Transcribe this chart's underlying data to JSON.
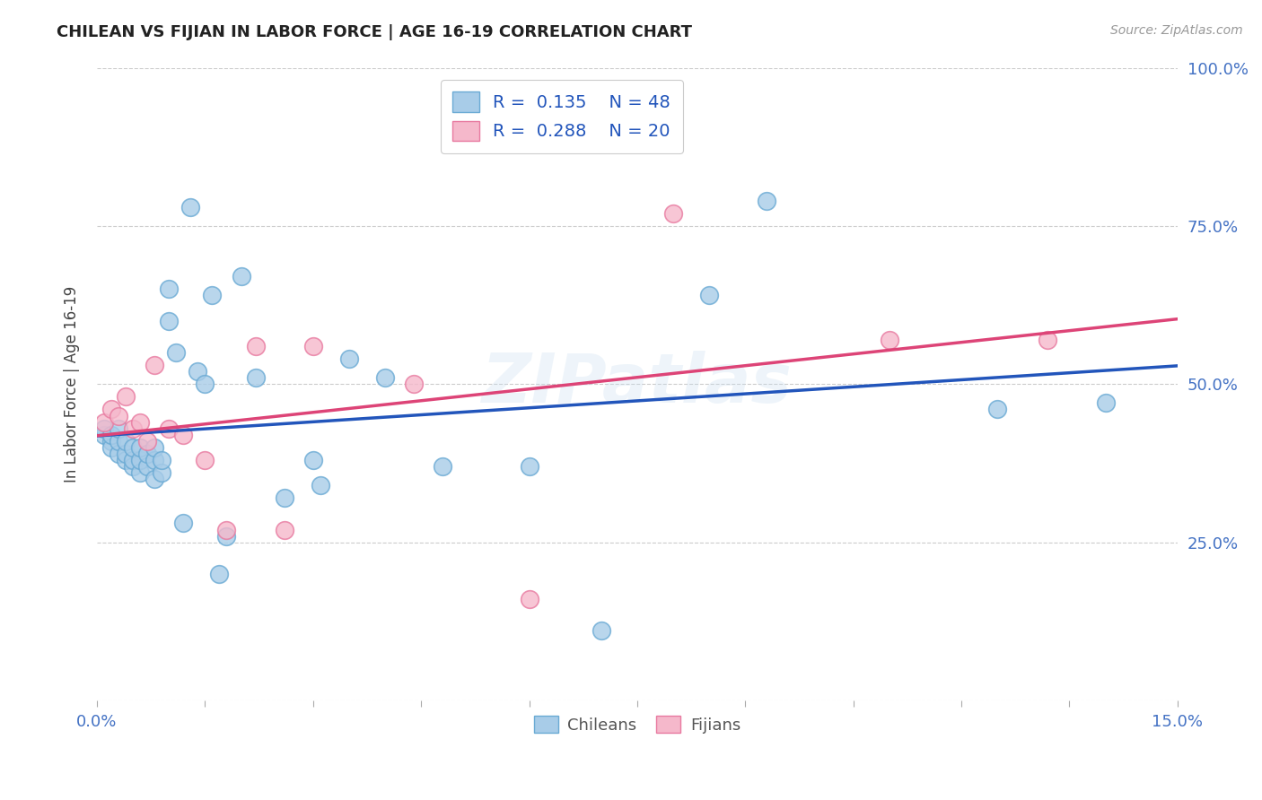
{
  "title": "CHILEAN VS FIJIAN IN LABOR FORCE | AGE 16-19 CORRELATION CHART",
  "source": "Source: ZipAtlas.com",
  "ylabel": "In Labor Force | Age 16-19",
  "xlim": [
    0.0,
    0.15
  ],
  "ylim": [
    0.0,
    1.0
  ],
  "xticks": [
    0.0,
    0.015,
    0.03,
    0.045,
    0.06,
    0.075,
    0.09,
    0.105,
    0.12,
    0.135,
    0.15
  ],
  "yticks": [
    0.0,
    0.25,
    0.5,
    0.75,
    1.0
  ],
  "chilean_color": "#a8cce8",
  "chilean_edge": "#6aaad4",
  "fijian_color": "#f5b8cb",
  "fijian_edge": "#e87aa0",
  "trend_blue": "#2255bb",
  "trend_pink": "#dd4477",
  "watermark": "ZIPatlas",
  "legend_r_chilean": "R =  0.135",
  "legend_n_chilean": "N = 48",
  "legend_r_fijian": "R =  0.288",
  "legend_n_fijian": "N = 20",
  "chilean_x": [
    0.001,
    0.001,
    0.002,
    0.002,
    0.002,
    0.003,
    0.003,
    0.003,
    0.004,
    0.004,
    0.004,
    0.005,
    0.005,
    0.005,
    0.006,
    0.006,
    0.006,
    0.007,
    0.007,
    0.008,
    0.008,
    0.008,
    0.009,
    0.009,
    0.01,
    0.01,
    0.011,
    0.012,
    0.013,
    0.014,
    0.015,
    0.016,
    0.017,
    0.018,
    0.02,
    0.022,
    0.026,
    0.03,
    0.031,
    0.035,
    0.04,
    0.048,
    0.06,
    0.07,
    0.085,
    0.093,
    0.125,
    0.14
  ],
  "chilean_y": [
    0.42,
    0.43,
    0.41,
    0.4,
    0.42,
    0.39,
    0.41,
    0.43,
    0.38,
    0.39,
    0.41,
    0.37,
    0.38,
    0.4,
    0.36,
    0.38,
    0.4,
    0.37,
    0.39,
    0.35,
    0.38,
    0.4,
    0.36,
    0.38,
    0.6,
    0.65,
    0.55,
    0.28,
    0.78,
    0.52,
    0.5,
    0.64,
    0.2,
    0.26,
    0.67,
    0.51,
    0.32,
    0.38,
    0.34,
    0.54,
    0.51,
    0.37,
    0.37,
    0.11,
    0.64,
    0.79,
    0.46,
    0.47
  ],
  "fijian_x": [
    0.001,
    0.002,
    0.003,
    0.004,
    0.005,
    0.006,
    0.007,
    0.008,
    0.01,
    0.012,
    0.015,
    0.018,
    0.022,
    0.026,
    0.03,
    0.044,
    0.06,
    0.08,
    0.11,
    0.132
  ],
  "fijian_y": [
    0.44,
    0.46,
    0.45,
    0.48,
    0.43,
    0.44,
    0.41,
    0.53,
    0.43,
    0.42,
    0.38,
    0.27,
    0.56,
    0.27,
    0.56,
    0.5,
    0.16,
    0.77,
    0.57,
    0.57
  ],
  "background_color": "#ffffff",
  "grid_color": "#cccccc",
  "legend_color": "#2255bb",
  "axis_tick_color": "#4472c4"
}
